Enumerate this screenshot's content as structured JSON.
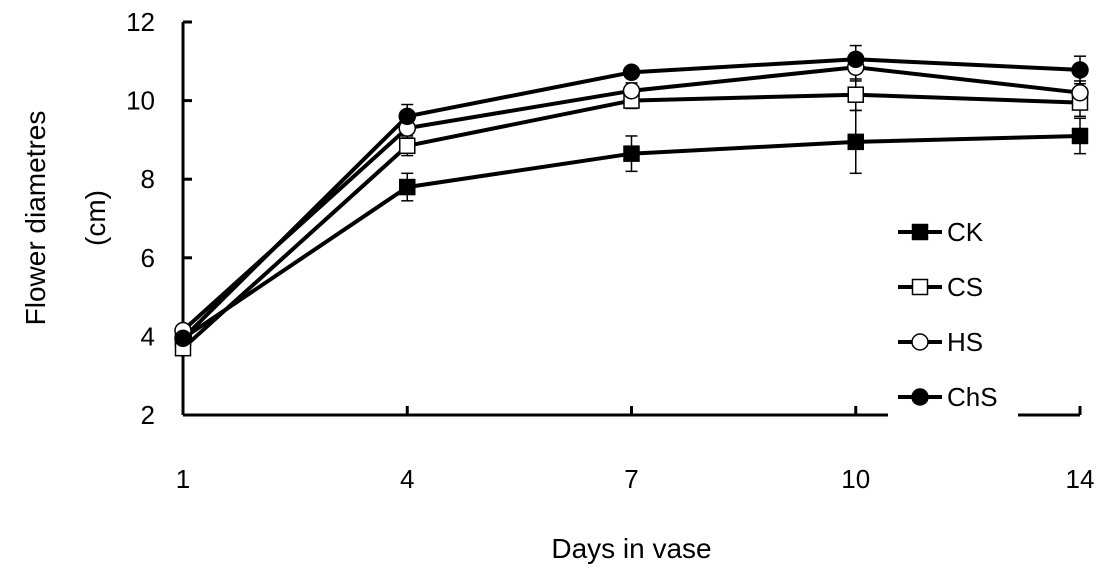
{
  "chart_data": {
    "type": "line",
    "x": [
      1,
      4,
      7,
      10,
      14
    ],
    "x_tick_labels": [
      "1",
      "4",
      "7",
      "10",
      "14"
    ],
    "y_tick_labels": [
      "2",
      "4",
      "6",
      "8",
      "10",
      "12"
    ],
    "ylim": [
      2,
      12
    ],
    "xlabel": "Days in vase",
    "ylabel_line1": "Flower diametres",
    "ylabel_line2": "(cm)",
    "legend_position": "right",
    "grid": false,
    "series": [
      {
        "name": "CK",
        "marker": "filled-square",
        "values": [
          3.95,
          7.8,
          8.65,
          8.95,
          9.1
        ],
        "errors": [
          0.2,
          0.35,
          0.45,
          0.8,
          0.45
        ]
      },
      {
        "name": "CS",
        "marker": "open-square",
        "values": [
          3.7,
          8.85,
          10.0,
          10.15,
          9.95
        ],
        "errors": [
          0.15,
          0.25,
          0.2,
          0.4,
          0.35
        ]
      },
      {
        "name": "HS",
        "marker": "open-circle",
        "values": [
          4.15,
          9.3,
          10.25,
          10.85,
          10.2
        ],
        "errors": [
          0.15,
          0.25,
          0.2,
          0.35,
          0.3
        ]
      },
      {
        "name": "ChS",
        "marker": "filled-circle",
        "values": [
          3.95,
          9.6,
          10.72,
          11.05,
          10.78
        ],
        "errors": [
          0.15,
          0.3,
          0.1,
          0.35,
          0.35
        ]
      }
    ]
  }
}
